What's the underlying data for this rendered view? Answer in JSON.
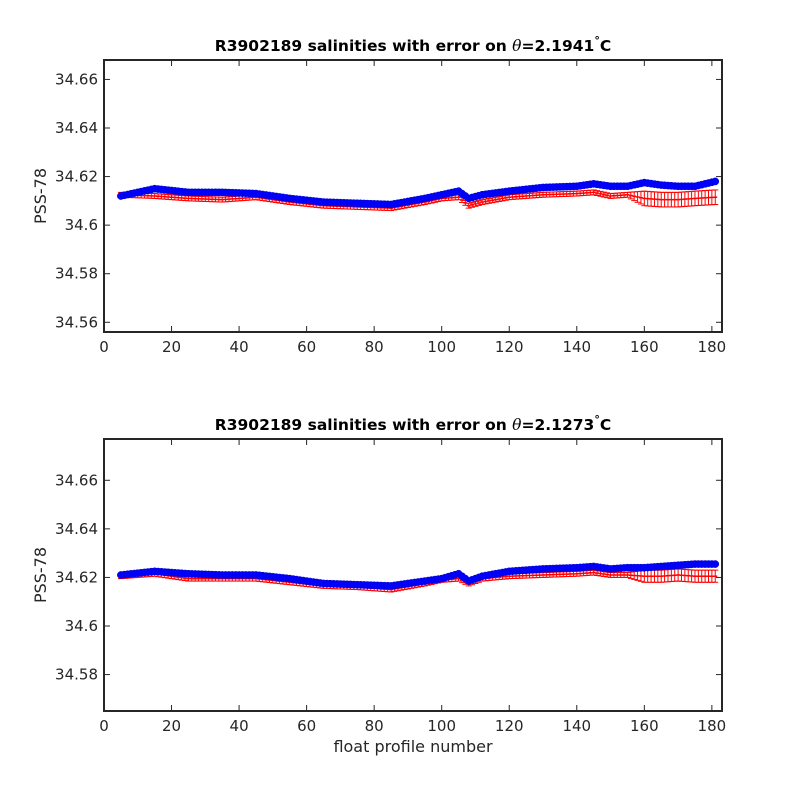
{
  "chart_data": [
    {
      "type": "scatter",
      "title": {
        "prefix": "R3902189 salinities with error on ",
        "theta_symbol": "θ",
        "value": "=2.1941",
        "degree": "°",
        "unit": "C"
      },
      "xlabel": "",
      "ylabel": "PSS-78",
      "xlim": [
        0,
        183
      ],
      "ylim": [
        34.556,
        34.668
      ],
      "xticks": [
        0,
        20,
        40,
        60,
        80,
        100,
        120,
        140,
        160,
        180
      ],
      "xtick_labels": [
        "0",
        "20",
        "40",
        "60",
        "80",
        "100",
        "120",
        "140",
        "160",
        "180"
      ],
      "yticks": [
        34.56,
        34.58,
        34.6,
        34.62,
        34.64,
        34.66
      ],
      "ytick_labels": [
        "34.56",
        "34.58",
        "34.6",
        "34.62",
        "34.64",
        "34.66"
      ],
      "grid": false,
      "colors": {
        "calibrated": "#0000ff",
        "calibrated_error": "#ff0000",
        "original": "#00ff00"
      },
      "series": [
        {
          "role": "calibrated",
          "profiles": [
            5,
            15,
            25,
            35,
            45,
            55,
            65,
            75,
            85,
            95,
            100,
            105,
            108,
            112,
            120,
            130,
            140,
            145,
            150,
            155,
            160,
            165,
            170,
            175,
            181
          ],
          "values": [
            34.612,
            34.615,
            34.6135,
            34.6135,
            34.613,
            34.611,
            34.6095,
            34.609,
            34.6085,
            34.611,
            34.6125,
            34.614,
            34.611,
            34.6125,
            34.614,
            34.6155,
            34.616,
            34.617,
            34.616,
            34.616,
            34.6175,
            34.6165,
            34.616,
            34.616,
            34.618
          ]
        },
        {
          "role": "calibrated_error",
          "profiles": [
            5,
            15,
            25,
            35,
            45,
            55,
            65,
            75,
            85,
            95,
            100,
            105,
            108,
            112,
            120,
            130,
            140,
            145,
            150,
            155,
            160,
            165,
            170,
            175,
            181
          ],
          "values": [
            34.6125,
            34.612,
            34.611,
            34.6105,
            34.6115,
            34.6095,
            34.608,
            34.6075,
            34.607,
            34.6095,
            34.611,
            34.6115,
            34.608,
            34.6095,
            34.6115,
            34.6125,
            34.613,
            34.6135,
            34.612,
            34.6125,
            34.611,
            34.6105,
            34.6105,
            34.611,
            34.6115
          ],
          "error": [
            0.001,
            0.001,
            0.001,
            0.001,
            0.001,
            0.001,
            0.001,
            0.001,
            0.001,
            0.001,
            0.001,
            0.001,
            0.001,
            0.001,
            0.001,
            0.001,
            0.001,
            0.001,
            0.001,
            0.001,
            0.003,
            0.003,
            0.003,
            0.003,
            0.003
          ]
        }
      ]
    },
    {
      "type": "scatter",
      "title": {
        "prefix": "R3902189 salinities with error on ",
        "theta_symbol": "θ",
        "value": "=2.1273",
        "degree": "°",
        "unit": "C"
      },
      "xlabel": "float profile number",
      "ylabel": "PSS-78",
      "xlim": [
        0,
        183
      ],
      "ylim": [
        34.565,
        34.677
      ],
      "xticks": [
        0,
        20,
        40,
        60,
        80,
        100,
        120,
        140,
        160,
        180
      ],
      "xtick_labels": [
        "0",
        "20",
        "40",
        "60",
        "80",
        "100",
        "120",
        "140",
        "160",
        "180"
      ],
      "yticks": [
        34.58,
        34.6,
        34.62,
        34.64,
        34.66
      ],
      "ytick_labels": [
        "34.58",
        "34.6",
        "34.62",
        "34.64",
        "34.66"
      ],
      "grid": false,
      "colors": {
        "calibrated": "#0000ff",
        "calibrated_error": "#ff0000",
        "original": "#00ff00"
      },
      "series": [
        {
          "role": "calibrated",
          "profiles": [
            5,
            15,
            25,
            35,
            45,
            55,
            65,
            75,
            85,
            95,
            100,
            105,
            108,
            112,
            120,
            130,
            140,
            145,
            150,
            155,
            160,
            165,
            170,
            175,
            181
          ],
          "values": [
            34.621,
            34.6225,
            34.6215,
            34.621,
            34.621,
            34.6195,
            34.6175,
            34.617,
            34.6165,
            34.6185,
            34.6195,
            34.6215,
            34.6185,
            34.6205,
            34.6225,
            34.6235,
            34.624,
            34.6245,
            34.6235,
            34.624,
            34.624,
            34.6245,
            34.625,
            34.6255,
            34.6255
          ]
        },
        {
          "role": "calibrated_error",
          "profiles": [
            5,
            15,
            25,
            35,
            45,
            55,
            65,
            75,
            85,
            95,
            100,
            105,
            108,
            112,
            120,
            130,
            140,
            145,
            150,
            155,
            160,
            165,
            170,
            175,
            181
          ],
          "values": [
            34.6205,
            34.6215,
            34.6195,
            34.6195,
            34.6195,
            34.618,
            34.6165,
            34.616,
            34.615,
            34.6175,
            34.619,
            34.6195,
            34.6175,
            34.6195,
            34.6205,
            34.621,
            34.6215,
            34.622,
            34.621,
            34.621,
            34.6205,
            34.6205,
            34.621,
            34.6205,
            34.6205
          ],
          "error": [
            0.001,
            0.001,
            0.001,
            0.001,
            0.001,
            0.001,
            0.001,
            0.001,
            0.001,
            0.001,
            0.001,
            0.001,
            0.001,
            0.001,
            0.001,
            0.001,
            0.001,
            0.001,
            0.001,
            0.001,
            0.0025,
            0.0025,
            0.0025,
            0.0025,
            0.0025
          ]
        }
      ]
    }
  ]
}
